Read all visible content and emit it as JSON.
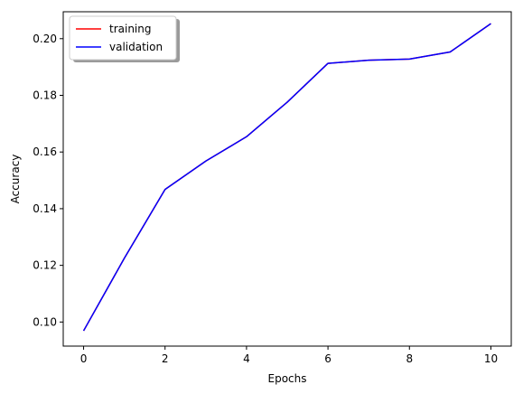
{
  "chart_data": {
    "type": "line",
    "title": "",
    "xlabel": "Epochs",
    "ylabel": "Accuracy",
    "xlim": [
      -0.5,
      10.5
    ],
    "ylim": [
      0.0915,
      0.2095
    ],
    "xticks": [
      0,
      2,
      4,
      6,
      8,
      10
    ],
    "xtick_labels": [
      "0",
      "2",
      "4",
      "6",
      "8",
      "10"
    ],
    "yticks": [
      0.1,
      0.12,
      0.14,
      0.16,
      0.18,
      0.2
    ],
    "ytick_labels": [
      "0.10",
      "0.12",
      "0.14",
      "0.16",
      "0.18",
      "0.20"
    ],
    "grid": false,
    "legend_position": "top-left",
    "x": [
      0,
      1,
      2,
      3,
      4,
      5,
      6,
      7,
      8,
      9,
      10
    ],
    "series": [
      {
        "name": "training",
        "color": "#ff0000",
        "values": [
          0.0969,
          0.1225,
          0.1468,
          0.1568,
          0.1654,
          0.1776,
          0.1913,
          0.1924,
          0.1928,
          0.1953,
          0.2053
        ]
      },
      {
        "name": "validation",
        "color": "#0000ff",
        "values": [
          0.0969,
          0.1225,
          0.1468,
          0.1568,
          0.1654,
          0.1776,
          0.1913,
          0.1924,
          0.1928,
          0.1953,
          0.2053
        ]
      }
    ]
  }
}
